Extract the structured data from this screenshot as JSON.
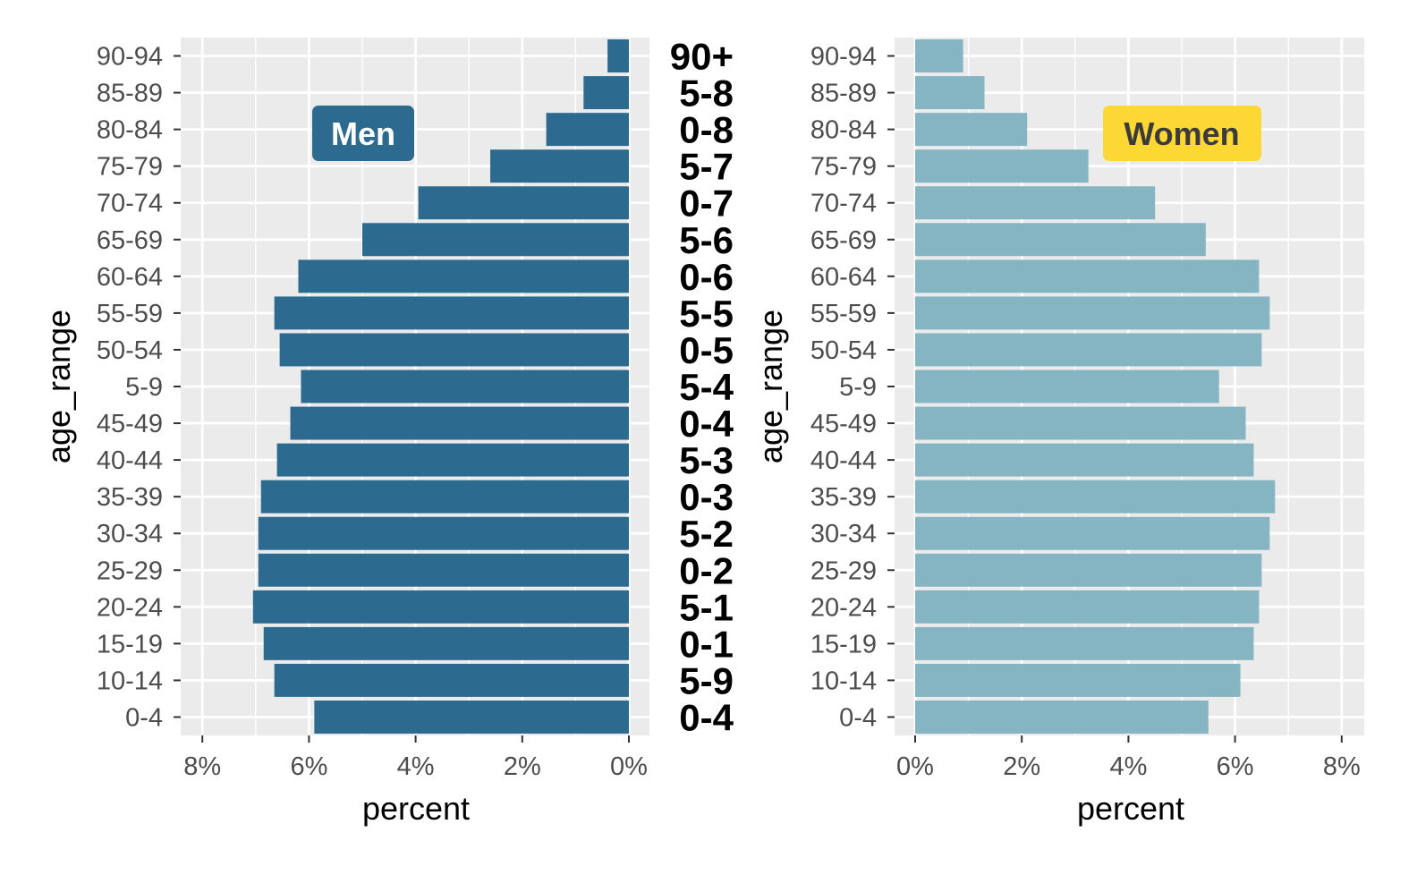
{
  "chart_data": [
    {
      "type": "bar",
      "orientation": "horizontal",
      "direction": "reversed",
      "panel": "men",
      "badge_label": "Men",
      "categories": [
        "0-4",
        "10-14",
        "15-19",
        "20-24",
        "25-29",
        "30-34",
        "35-39",
        "40-44",
        "45-49",
        "5-9",
        "50-54",
        "55-59",
        "60-64",
        "65-69",
        "70-74",
        "75-79",
        "80-84",
        "85-89",
        "90-94"
      ],
      "values": [
        5.9,
        6.65,
        6.85,
        7.05,
        6.95,
        6.95,
        6.9,
        6.6,
        6.35,
        6.15,
        6.55,
        6.65,
        6.2,
        5.0,
        3.95,
        2.6,
        1.55,
        0.85,
        0.4
      ],
      "xlabel": "percent",
      "ylabel": "age_range",
      "xlim": [
        0,
        8
      ],
      "x_ticks": [
        "8%",
        "6%",
        "4%",
        "2%",
        "0%"
      ],
      "color": "#2c6a8f",
      "grid": true
    },
    {
      "type": "bar",
      "orientation": "horizontal",
      "panel": "women",
      "badge_label": "Women",
      "categories": [
        "0-4",
        "10-14",
        "15-19",
        "20-24",
        "25-29",
        "30-34",
        "35-39",
        "40-44",
        "45-49",
        "5-9",
        "50-54",
        "55-59",
        "60-64",
        "65-69",
        "70-74",
        "75-79",
        "80-84",
        "85-89",
        "90-94"
      ],
      "values": [
        5.5,
        6.1,
        6.35,
        6.45,
        6.5,
        6.65,
        6.75,
        6.35,
        6.2,
        5.7,
        6.5,
        6.65,
        6.45,
        5.45,
        4.5,
        3.25,
        2.1,
        1.3,
        0.9
      ],
      "xlabel": "percent",
      "ylabel": "age_range",
      "xlim": [
        0,
        8
      ],
      "x_ticks": [
        "0%",
        "2%",
        "4%",
        "6%",
        "8%"
      ],
      "color": "#85b4c2",
      "grid": true
    }
  ],
  "middle_labels": [
    "0-4",
    "5-9",
    "0-1",
    "5-1",
    "0-2",
    "5-2",
    "0-3",
    "5-3",
    "0-4",
    "5-4",
    "0-5",
    "5-5",
    "0-6",
    "5-6",
    "0-7",
    "5-7",
    "0-8",
    "5-8",
    "90+"
  ],
  "colors": {
    "panel_bg": "#ebebeb",
    "grid": "#ffffff",
    "men_bar": "#2c6a8f",
    "women_bar": "#85b4c2",
    "men_badge": "#2c6a8f",
    "women_badge": "#fdd835",
    "men_badge_text": "#ffffff",
    "women_badge_text": "#3b3b3b"
  }
}
